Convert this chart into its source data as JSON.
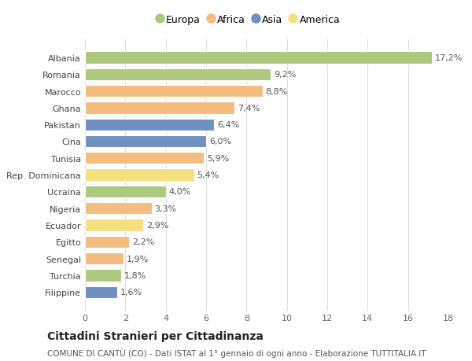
{
  "categories": [
    "Albania",
    "Romania",
    "Marocco",
    "Ghana",
    "Pakistan",
    "Cina",
    "Tunisia",
    "Rep. Dominicana",
    "Ucraina",
    "Nigeria",
    "Ecuador",
    "Egitto",
    "Senegal",
    "Turchia",
    "Filippine"
  ],
  "values": [
    17.2,
    9.2,
    8.8,
    7.4,
    6.4,
    6.0,
    5.9,
    5.4,
    4.0,
    3.3,
    2.9,
    2.2,
    1.9,
    1.8,
    1.6
  ],
  "labels": [
    "17,2%",
    "9,2%",
    "8,8%",
    "7,4%",
    "6,4%",
    "6,0%",
    "5,9%",
    "5,4%",
    "4,0%",
    "3,3%",
    "2,9%",
    "2,2%",
    "1,9%",
    "1,8%",
    "1,6%"
  ],
  "colors": [
    "#adc97e",
    "#adc97e",
    "#f5bc80",
    "#f5bc80",
    "#7090c0",
    "#7090c0",
    "#f5bc80",
    "#f5e080",
    "#adc97e",
    "#f5bc80",
    "#f5e080",
    "#f5bc80",
    "#f5bc80",
    "#adc97e",
    "#7090c0"
  ],
  "legend_labels": [
    "Europa",
    "Africa",
    "Asia",
    "America"
  ],
  "legend_colors": [
    "#adc97e",
    "#f5bc80",
    "#7090c0",
    "#f5e080"
  ],
  "xlim": [
    0,
    18
  ],
  "xticks": [
    0,
    2,
    4,
    6,
    8,
    10,
    12,
    14,
    16,
    18
  ],
  "title": "Cittadini Stranieri per Cittadinanza",
  "subtitle": "COMUNE DI CANTÙ (CO) - Dati ISTAT al 1° gennaio di ogni anno - Elaborazione TUTTITALIA.IT",
  "bg_color": "#ffffff",
  "bar_height": 0.72,
  "label_fontsize": 8,
  "tick_fontsize": 8,
  "title_fontsize": 10,
  "subtitle_fontsize": 7.5
}
